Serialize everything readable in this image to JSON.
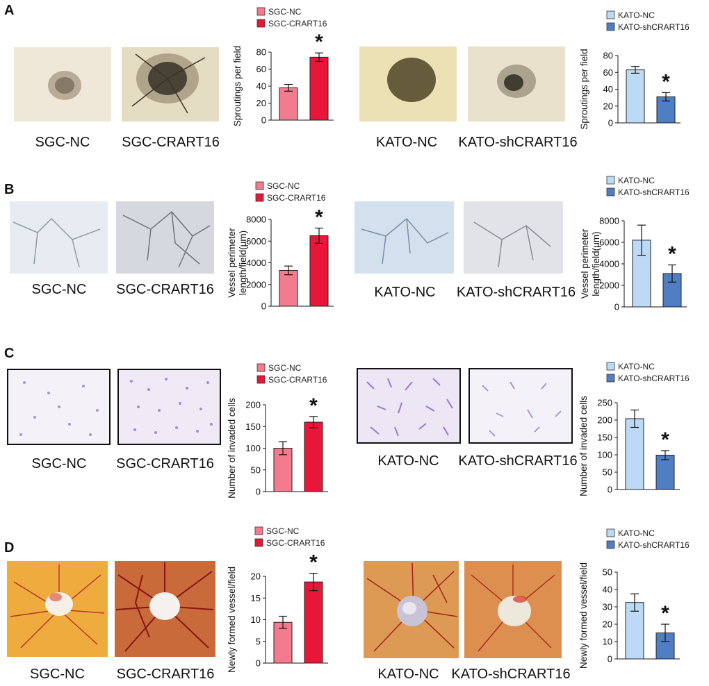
{
  "colors": {
    "sgc_nc": "#f27c8d",
    "sgc_crart16": "#e8173a",
    "kato_nc": "#bcdaf6",
    "kato_sh": "#4f7fc2",
    "sprouting_bg": "#efe7d7",
    "tube_bg": "#dfe4ea",
    "transwell_bg": "#f3f0f7",
    "cam_bg": "#e3a13a"
  },
  "panels": [
    {
      "letter": "A",
      "assay_icon": "sprouting-micrograph",
      "left": {
        "img1_label": "SGC-NC",
        "img2_label": "SGC-CRART16"
      },
      "right": {
        "img1_label": "KATO-NC",
        "img2_label": "KATO-shCRART16"
      }
    },
    {
      "letter": "B",
      "assay_icon": "tube-formation-micrograph",
      "left": {
        "img1_label": "SGC-NC",
        "img2_label": "SGC-CRART16"
      },
      "right": {
        "img1_label": "KATO-NC",
        "img2_label": "KATO-shCRART16"
      }
    },
    {
      "letter": "C",
      "assay_icon": "transwell-micrograph",
      "left": {
        "img1_label": "SGC-NC",
        "img2_label": "SGC-CRART16"
      },
      "right": {
        "img1_label": "KATO-NC",
        "img2_label": "KATO-shCRART16"
      }
    },
    {
      "letter": "D",
      "assay_icon": "cam-photo",
      "left": {
        "img1_label": "SGC-NC",
        "img2_label": "SGC-CRART16"
      },
      "right": {
        "img1_label": "KATO-NC",
        "img2_label": "KATO-shCRART16"
      }
    }
  ],
  "chart_data": [
    {
      "type": "bar",
      "panel": "A",
      "ylabel": "Sproutings per field",
      "ylim": [
        0,
        80
      ],
      "yticks": [
        0,
        20,
        40,
        60,
        80
      ],
      "series": [
        {
          "name": "SGC-NC",
          "values": [
            38
          ],
          "error": [
            4
          ]
        },
        {
          "name": "SGC-CRART16",
          "values": [
            74
          ],
          "error": [
            5
          ]
        }
      ],
      "annotation": "*"
    },
    {
      "type": "bar",
      "panel": "A",
      "ylabel": "Sproutings per field",
      "ylim": [
        0,
        80
      ],
      "yticks": [
        0,
        20,
        40,
        60,
        80
      ],
      "series": [
        {
          "name": "KATO-NC",
          "values": [
            63
          ],
          "error": [
            4
          ]
        },
        {
          "name": "KATO-shCRART16",
          "values": [
            31
          ],
          "error": [
            5
          ]
        }
      ],
      "annotation": "*"
    },
    {
      "type": "bar",
      "panel": "B",
      "ylabel": "Vessel perimeter length/field(μm)",
      "ylim": [
        0,
        8000
      ],
      "yticks": [
        0,
        2000,
        4000,
        6000,
        8000
      ],
      "series": [
        {
          "name": "SGC-NC",
          "values": [
            3300
          ],
          "error": [
            400
          ]
        },
        {
          "name": "SGC-CRART16",
          "values": [
            6500
          ],
          "error": [
            700
          ]
        }
      ],
      "annotation": "*"
    },
    {
      "type": "bar",
      "panel": "B",
      "ylabel": "Vessel perimeter length/field(μm)",
      "ylim": [
        0,
        8000
      ],
      "yticks": [
        0,
        2000,
        4000,
        6000,
        8000
      ],
      "series": [
        {
          "name": "KATO-NC",
          "values": [
            6200
          ],
          "error": [
            1400
          ]
        },
        {
          "name": "KATO-shCRART16",
          "values": [
            3100
          ],
          "error": [
            800
          ]
        }
      ],
      "annotation": "*"
    },
    {
      "type": "bar",
      "panel": "C",
      "ylabel": "Number of invaded cells",
      "ylim": [
        0,
        200
      ],
      "yticks": [
        0,
        50,
        100,
        150,
        200
      ],
      "series": [
        {
          "name": "SGC-NC",
          "values": [
            100
          ],
          "error": [
            15
          ]
        },
        {
          "name": "SGC-CRART16",
          "values": [
            160
          ],
          "error": [
            13
          ]
        }
      ],
      "annotation": "*"
    },
    {
      "type": "bar",
      "panel": "C",
      "ylabel": "Number of invaded cells",
      "ylim": [
        0,
        250
      ],
      "yticks": [
        0,
        50,
        100,
        150,
        200,
        250
      ],
      "series": [
        {
          "name": "KATO-NC",
          "values": [
            204
          ],
          "error": [
            25
          ]
        },
        {
          "name": "KATO-shCRART16",
          "values": [
            99
          ],
          "error": [
            13
          ]
        }
      ],
      "annotation": "*"
    },
    {
      "type": "bar",
      "panel": "D",
      "ylabel": "Newly formed vessel/field",
      "ylim": [
        0,
        20
      ],
      "yticks": [
        0,
        5,
        10,
        15,
        20
      ],
      "series": [
        {
          "name": "SGC-NC",
          "values": [
            9.4
          ],
          "error": [
            1.4
          ]
        },
        {
          "name": "SGC-CRART16",
          "values": [
            18.7
          ],
          "error": [
            2.0
          ]
        }
      ],
      "annotation": "*"
    },
    {
      "type": "bar",
      "panel": "D",
      "ylabel": "Newly formed vessel/field",
      "ylim": [
        0,
        50
      ],
      "yticks": [
        0,
        10,
        20,
        30,
        40,
        50
      ],
      "series": [
        {
          "name": "KATO-NC",
          "values": [
            32.5
          ],
          "error": [
            5
          ]
        },
        {
          "name": "KATO-shCRART16",
          "values": [
            15
          ],
          "error": [
            5
          ]
        }
      ],
      "annotation": "*"
    }
  ]
}
